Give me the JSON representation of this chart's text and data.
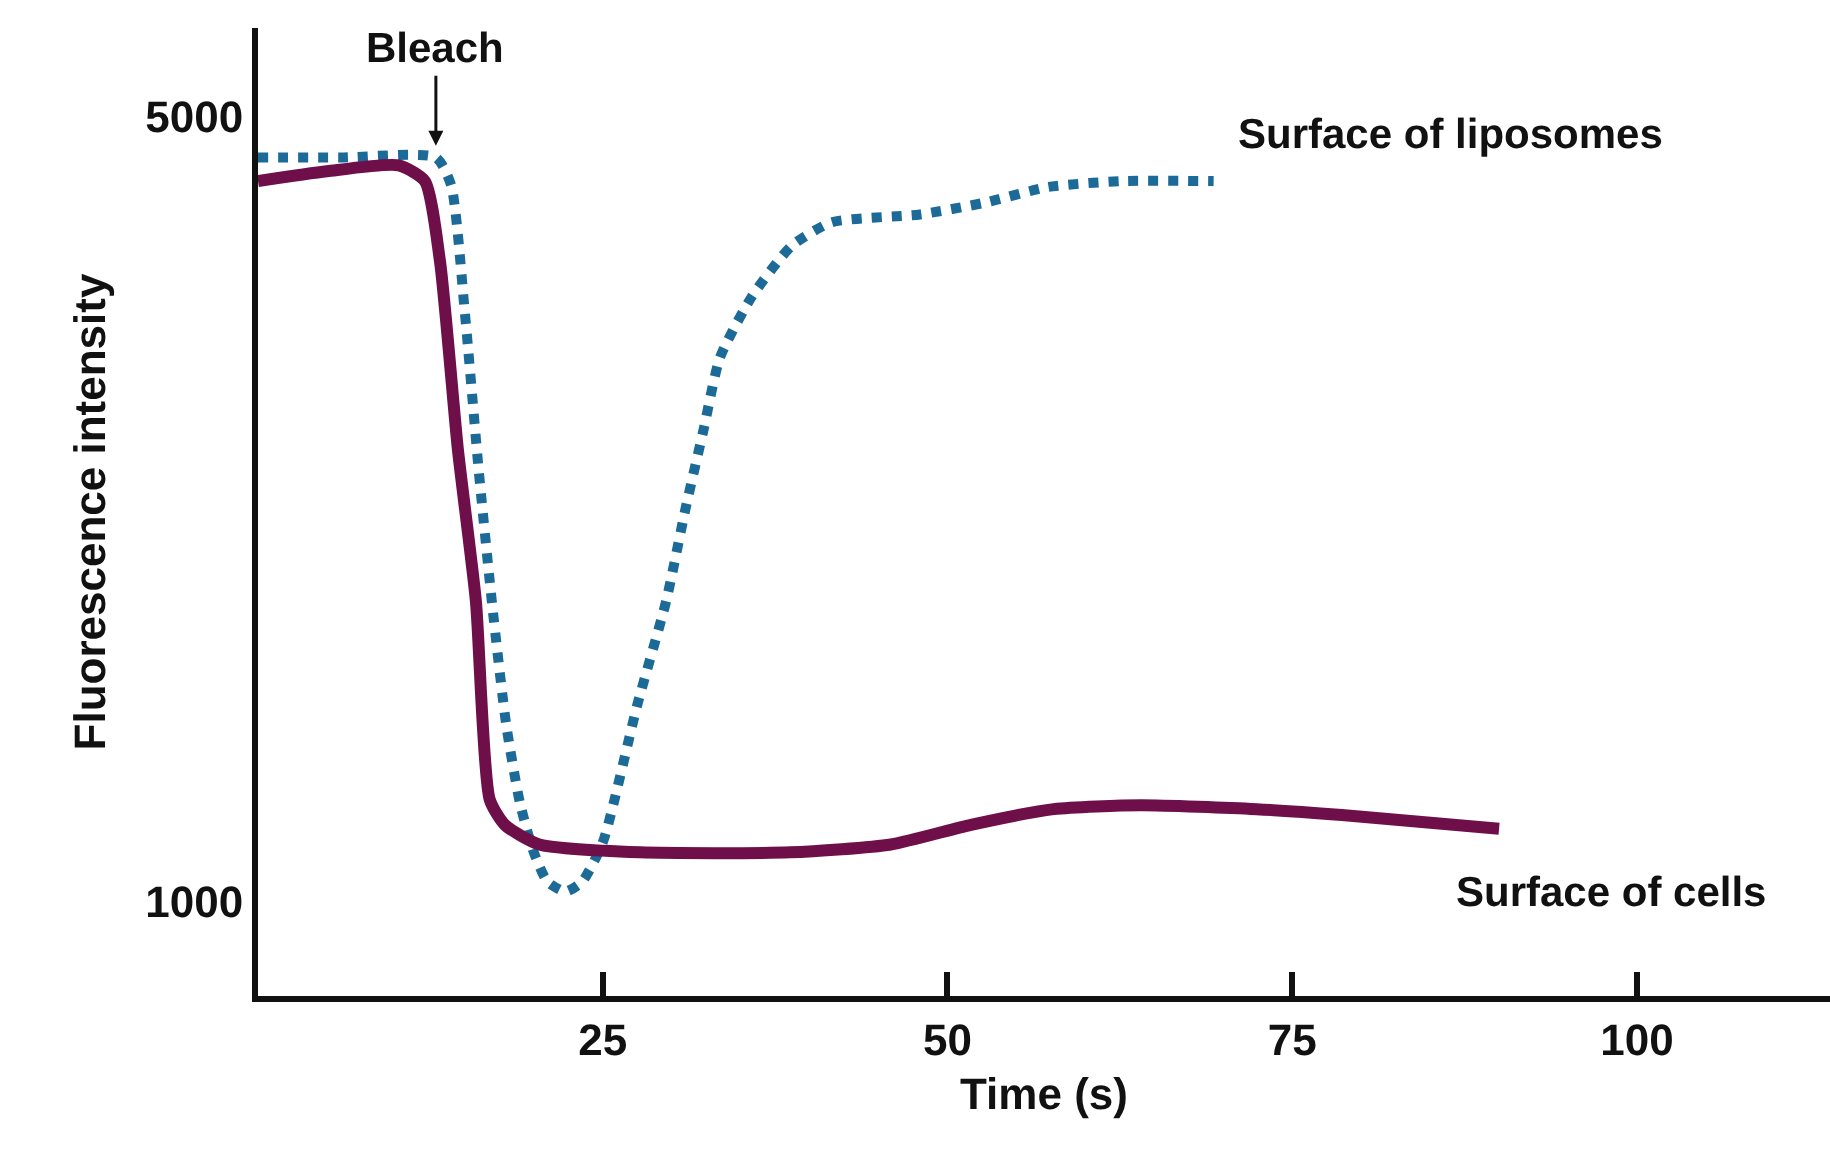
{
  "chart_data": {
    "type": "line",
    "xlabel": "Time (s)",
    "ylabel": "Fluorescence intensity",
    "xlim": [
      0,
      114
    ],
    "ylim": [
      518,
      5450
    ],
    "xticks": [
      25,
      50,
      75,
      100
    ],
    "yticks": [
      1000,
      5000
    ],
    "legend": false,
    "marker": "none",
    "annotations": [
      {
        "text": "Bleach",
        "x": 12.9,
        "y": 4850
      }
    ],
    "series": [
      {
        "name": "Surface of liposomes",
        "color": "#1b6a97",
        "line_style": "dotted",
        "x": [
          0,
          6,
          12.9,
          14,
          15,
          16,
          17,
          18,
          19,
          20,
          21,
          22.3,
          23.5,
          25,
          27.5,
          29.6,
          31,
          32.3,
          33.5,
          35.8,
          38.7,
          41.6,
          48,
          52.7,
          57.3,
          62.6,
          69.3
        ],
        "values": [
          4790,
          4790,
          4790,
          4650,
          4000,
          3200,
          2500,
          1900,
          1500,
          1250,
          1100,
          1050,
          1100,
          1300,
          2000,
          2530,
          3000,
          3400,
          3770,
          4080,
          4340,
          4460,
          4500,
          4560,
          4640,
          4670,
          4670
        ]
      },
      {
        "name": "Surface of cells",
        "color": "#6e0f4a",
        "line_style": "solid",
        "x": [
          0,
          5,
          10.2,
          12.1,
          13.2,
          14.5,
          15.8,
          16.8,
          17.9,
          20.4,
          27.7,
          38.6,
          45.9,
          51.7,
          57.7,
          64,
          72.4,
          78.6,
          90
        ],
        "values": [
          4670,
          4720,
          4750,
          4670,
          4260,
          3300,
          2530,
          1520,
          1390,
          1290,
          1250,
          1250,
          1290,
          1390,
          1470,
          1490,
          1470,
          1440,
          1370
        ]
      }
    ]
  }
}
